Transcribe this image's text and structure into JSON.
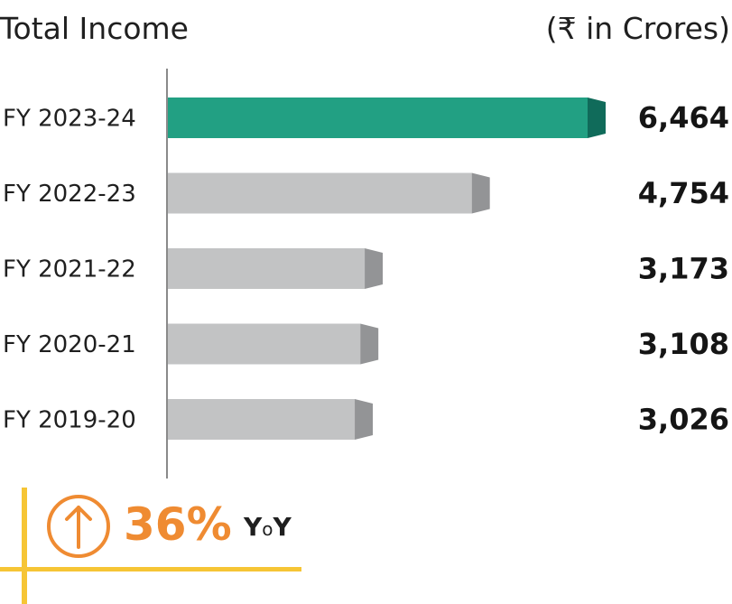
{
  "chart_data": {
    "type": "bar",
    "orientation": "horizontal",
    "title": "Total Income",
    "unit": "(₹ in Crores)",
    "categories": [
      "FY 2023-24",
      "FY 2022-23",
      "FY 2021-22",
      "FY 2020-21",
      "FY 2019-20"
    ],
    "values": [
      6464,
      4754,
      3173,
      3108,
      3026
    ],
    "value_labels": [
      "6,464",
      "4,754",
      "3,173",
      "3,108",
      "3,026"
    ],
    "xlim": [
      0,
      6464
    ],
    "grid": false,
    "legend": "none"
  },
  "colors": {
    "highlight_bar": "#22a083",
    "highlight_bar_end": "#106b5a",
    "bar": "#c2c3c4",
    "bar_end": "#939496",
    "axis": "#8a8a8a",
    "accent": "#ef8b32",
    "cross_lines": "#f6c535"
  },
  "yoy": {
    "value": "36%",
    "label": "YoY",
    "label_parts": [
      "Y",
      "o",
      "Y"
    ],
    "icon": "arrow-up-circle-icon"
  }
}
